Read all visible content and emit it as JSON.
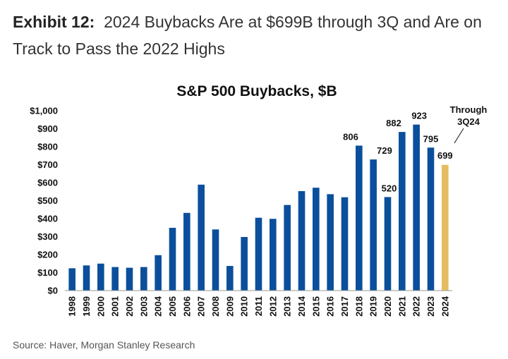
{
  "header": {
    "exhibit_label": "Exhibit 12:",
    "exhibit_title": "2024 Buybacks Are at $699B through 3Q and Are on Track to Pass the 2022 Highs"
  },
  "footer": {
    "source": "Source: Haver, Morgan Stanley Research"
  },
  "colors": {
    "bar": "#0b4f9c",
    "highlight": "#e4bd61",
    "axis": "#9a9a9a"
  },
  "chart_data": {
    "type": "bar",
    "title": "S&P 500 Buybacks, $B",
    "xlabel": "",
    "ylabel": "",
    "ylim": [
      0,
      1000
    ],
    "yticks": [
      0,
      100,
      200,
      300,
      400,
      500,
      600,
      700,
      800,
      900,
      1000
    ],
    "ytick_labels": [
      "$0",
      "$100",
      "$200",
      "$300",
      "$400",
      "$500",
      "$600",
      "$700",
      "$800",
      "$900",
      "$1,000"
    ],
    "categories": [
      "1998",
      "1999",
      "2000",
      "2001",
      "2002",
      "2003",
      "2004",
      "2005",
      "2006",
      "2007",
      "2008",
      "2009",
      "2010",
      "2011",
      "2012",
      "2013",
      "2014",
      "2015",
      "2016",
      "2017",
      "2018",
      "2019",
      "2020",
      "2021",
      "2022",
      "2023",
      "2024"
    ],
    "values": [
      124,
      140,
      150,
      131,
      127,
      131,
      197,
      349,
      432,
      589,
      340,
      137,
      298,
      405,
      399,
      476,
      553,
      572,
      536,
      519,
      806,
      729,
      520,
      882,
      923,
      795,
      699
    ],
    "data_labels": [
      {
        "index": 20,
        "text": "806"
      },
      {
        "index": 21,
        "text": "729"
      },
      {
        "index": 22,
        "text": "520"
      },
      {
        "index": 23,
        "text": "882"
      },
      {
        "index": 24,
        "text": "923"
      },
      {
        "index": 25,
        "text": "795"
      },
      {
        "index": 26,
        "text": "699"
      }
    ],
    "highlight_index": 26,
    "annotation": {
      "line1": "Through",
      "line2": "3Q24"
    }
  }
}
